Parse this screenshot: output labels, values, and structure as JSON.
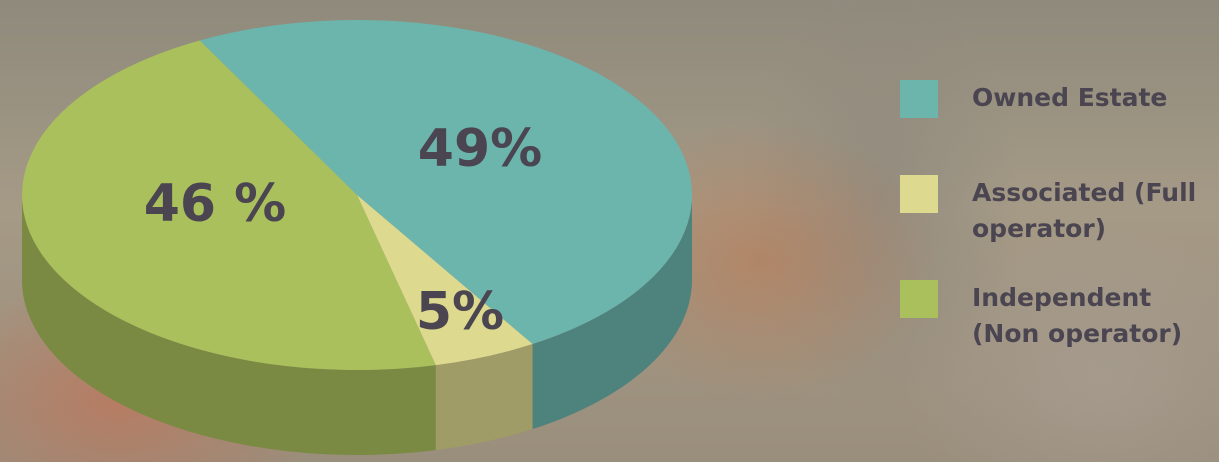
{
  "chart_data": {
    "type": "pie",
    "categories": [
      "Owned Estate",
      "Associated (Full operator)",
      "Independent (Non operator)"
    ],
    "values": [
      49,
      5,
      46
    ],
    "value_labels": [
      "49%",
      "5%",
      "46 %"
    ],
    "colors": [
      "#6cb5ad",
      "#ddd98f",
      "#a9c05c"
    ]
  }
}
